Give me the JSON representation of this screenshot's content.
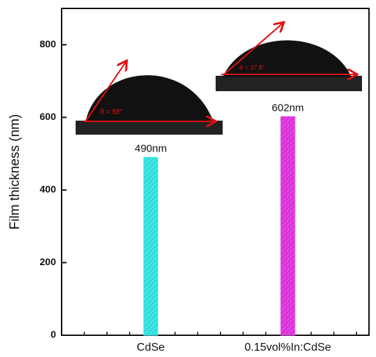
{
  "chart_data": {
    "type": "bar",
    "y_label": "Film thickness (nm)",
    "categories": [
      "CdSe",
      "0.15vol%In:CdSe"
    ],
    "values": [
      490,
      602
    ],
    "value_labels": [
      "490nm",
      "602nm"
    ],
    "colors": [
      "#3ee6e6",
      "#e23ee2"
    ],
    "hatch": true,
    "ylim": [
      0,
      900
    ],
    "yticks": [
      0,
      200,
      400,
      600,
      800
    ],
    "annotations": [
      {
        "text": "θ = 58°"
      },
      {
        "text": "θ = 37.8°"
      }
    ]
  }
}
